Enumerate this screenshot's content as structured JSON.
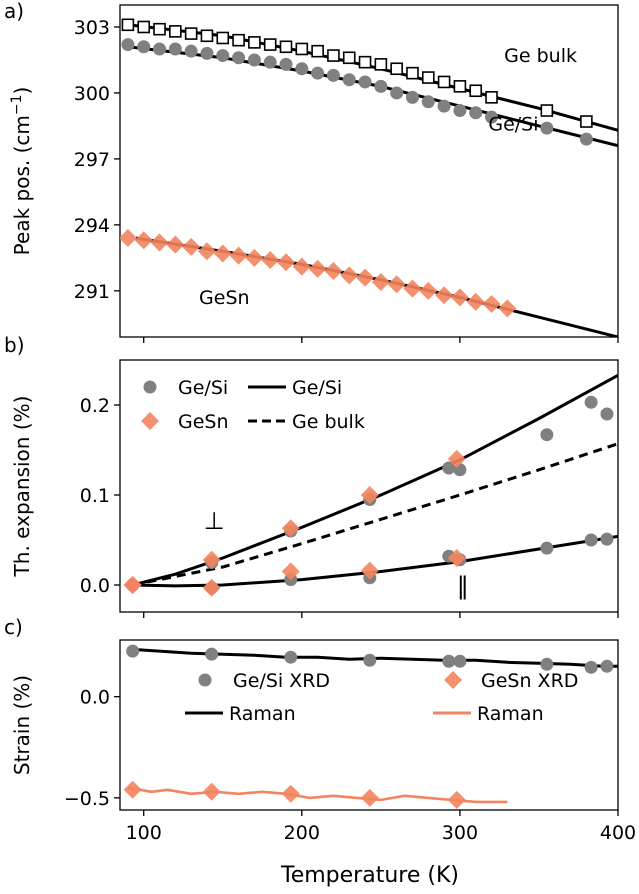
{
  "figure": {
    "x_label": "Temperature (K)",
    "x_ticks": [
      100,
      200,
      300,
      400
    ]
  },
  "chart_data": [
    {
      "panel_label": "a)",
      "type": "scatter",
      "ylabel": "Peak pos. (cm$^{-1}$)",
      "ylabel_main": "Peak pos. (cm",
      "ylabel_sup": "−1",
      "ylabel_close": ")",
      "xlim": [
        85,
        400
      ],
      "ylim": [
        288.9,
        304.0
      ],
      "yticks": [
        291,
        294,
        297,
        300,
        303
      ],
      "yticklabels": [
        "291",
        "294",
        "297",
        "300",
        "303"
      ],
      "annotations": [
        {
          "text": "Ge bulk",
          "x": 328,
          "y": 301.4
        },
        {
          "text": "Ge/Si",
          "x": 318,
          "y": 298.3
        },
        {
          "text": "GeSn",
          "x": 135,
          "y": 290.4
        }
      ],
      "series": [
        {
          "name": "Ge bulk",
          "kind": "points",
          "marker": "square",
          "color": "#000000",
          "x": [
            90,
            100,
            110,
            120,
            130,
            140,
            150,
            160,
            170,
            180,
            190,
            200,
            210,
            220,
            230,
            240,
            250,
            260,
            270,
            280,
            290,
            300,
            310,
            320,
            355,
            380
          ],
          "y": [
            303.1,
            303.0,
            302.9,
            302.8,
            302.7,
            302.6,
            302.5,
            302.4,
            302.3,
            302.2,
            302.1,
            302.0,
            301.9,
            301.7,
            301.6,
            301.4,
            301.3,
            301.1,
            300.9,
            300.7,
            300.5,
            300.3,
            300.1,
            299.8,
            299.2,
            298.7
          ]
        },
        {
          "name": "Ge bulk fit",
          "kind": "line",
          "color": "#000000",
          "x": [
            90,
            150,
            200,
            250,
            300,
            350,
            400
          ],
          "y": [
            303.1,
            302.6,
            301.9,
            301.1,
            300.2,
            299.3,
            298.3
          ]
        },
        {
          "name": "Ge/Si",
          "kind": "points",
          "marker": "circle",
          "color": "#808080",
          "x": [
            90,
            100,
            110,
            120,
            130,
            140,
            150,
            160,
            170,
            180,
            190,
            200,
            210,
            220,
            230,
            240,
            250,
            260,
            270,
            280,
            290,
            300,
            310,
            320,
            355,
            380
          ],
          "y": [
            302.2,
            302.1,
            302.0,
            302.0,
            301.9,
            301.8,
            301.7,
            301.6,
            301.5,
            301.4,
            301.3,
            301.1,
            300.9,
            300.8,
            300.6,
            300.5,
            300.3,
            300.0,
            299.8,
            299.6,
            299.4,
            299.2,
            299.1,
            298.9,
            298.4,
            297.9
          ]
        },
        {
          "name": "Ge/Si fit",
          "kind": "line",
          "color": "#000000",
          "x": [
            90,
            150,
            200,
            250,
            300,
            350,
            400
          ],
          "y": [
            302.1,
            301.6,
            301.0,
            300.3,
            299.4,
            298.5,
            297.6
          ]
        },
        {
          "name": "GeSn",
          "kind": "points",
          "marker": "diamond",
          "color": "#f4845f",
          "x": [
            90,
            100,
            110,
            120,
            130,
            140,
            150,
            160,
            170,
            180,
            190,
            200,
            210,
            220,
            230,
            240,
            250,
            260,
            270,
            280,
            290,
            300,
            310,
            320,
            330
          ],
          "y": [
            293.4,
            293.3,
            293.2,
            293.1,
            293.0,
            292.8,
            292.7,
            292.6,
            292.5,
            292.4,
            292.3,
            292.1,
            292.0,
            291.9,
            291.7,
            291.6,
            291.4,
            291.3,
            291.1,
            291.0,
            290.8,
            290.7,
            290.5,
            290.4,
            290.2
          ]
        },
        {
          "name": "GeSn fit",
          "kind": "line",
          "color": "#000000",
          "x": [
            95,
            150,
            200,
            250,
            300,
            350,
            400
          ],
          "y": [
            293.4,
            292.8,
            292.2,
            291.5,
            290.7,
            289.8,
            288.9
          ]
        }
      ]
    },
    {
      "panel_label": "b)",
      "type": "scatter",
      "ylabel": "Th. expansion (%)",
      "xlim": [
        85,
        400
      ],
      "ylim": [
        -0.03,
        0.25
      ],
      "yticks": [
        0.0,
        0.1,
        0.2
      ],
      "yticklabels": [
        "0.0",
        "0.1",
        "0.2"
      ],
      "legend_position": "top-left",
      "legend": [
        {
          "label": "Ge/Si",
          "symbol": "circle",
          "color": "#808080"
        },
        {
          "label": "GeSn",
          "symbol": "diamond",
          "color": "#f4845f"
        },
        {
          "label": "Ge/Si",
          "symbol": "solid-line",
          "color": "#000000"
        },
        {
          "label": "Ge bulk",
          "symbol": "dashed-line",
          "color": "#000000"
        }
      ],
      "annotations": [
        {
          "text": "⊥",
          "x": 138,
          "y": 0.062
        },
        {
          "text": "‖",
          "x": 298,
          "y": -0.01
        }
      ],
      "series": [
        {
          "name": "Ge/Si",
          "kind": "points",
          "marker": "circle",
          "color": "#808080",
          "x": [
            93,
            143,
            193,
            243,
            293,
            300,
            355,
            383,
            393
          ],
          "y": [
            0.0,
            0.025,
            0.06,
            0.095,
            0.13,
            0.128,
            0.167,
            0.203,
            0.19
          ]
        },
        {
          "name": "Ge/Si",
          "kind": "points",
          "marker": "circle",
          "color": "#808080",
          "x": [
            93,
            143,
            193,
            243,
            293,
            300,
            355,
            383,
            393
          ],
          "y": [
            0.0,
            -0.003,
            0.006,
            0.008,
            0.032,
            0.028,
            0.041,
            0.05,
            0.051
          ]
        },
        {
          "name": "GeSn",
          "kind": "points",
          "marker": "diamond",
          "color": "#f4845f",
          "x": [
            93,
            143,
            193,
            243,
            298
          ],
          "y": [
            0.0,
            0.028,
            0.063,
            0.1,
            0.14
          ]
        },
        {
          "name": "GeSn",
          "kind": "points",
          "marker": "diamond",
          "color": "#f4845f",
          "x": [
            93,
            143,
            193,
            243,
            298
          ],
          "y": [
            0.0,
            -0.003,
            0.015,
            0.016,
            0.03
          ]
        },
        {
          "name": "Ge/Si",
          "kind": "line",
          "color": "#000000",
          "x": [
            93,
            120,
            150,
            200,
            250,
            300,
            350,
            400
          ],
          "y": [
            0.0,
            0.012,
            0.03,
            0.064,
            0.1,
            0.139,
            0.185,
            0.233
          ]
        },
        {
          "name": "Ge/Si",
          "kind": "line",
          "color": "#000000",
          "x": [
            93,
            120,
            150,
            200,
            250,
            300,
            350,
            400
          ],
          "y": [
            0.0,
            -0.001,
            0.0,
            0.006,
            0.015,
            0.026,
            0.04,
            0.054
          ]
        },
        {
          "name": "Ge bulk",
          "kind": "line",
          "dash": true,
          "color": "#000000",
          "x": [
            93,
            150,
            200,
            250,
            300,
            350,
            400
          ],
          "y": [
            0.0,
            0.02,
            0.046,
            0.073,
            0.1,
            0.128,
            0.157
          ]
        }
      ]
    },
    {
      "panel_label": "c)",
      "type": "scatter",
      "ylabel": "Strain (%)",
      "xlim": [
        85,
        400
      ],
      "ylim": [
        -0.56,
        0.28
      ],
      "yticks": [
        -0.5,
        0.0
      ],
      "yticklabels": [
        "−0.5",
        "0.0"
      ],
      "legend": [
        {
          "label": "Ge/Si XRD",
          "symbol": "circle",
          "color": "#808080"
        },
        {
          "label": "GeSn XRD",
          "symbol": "diamond",
          "color": "#f4845f"
        },
        {
          "label": "Raman",
          "symbol": "solid-line",
          "color": "#000000"
        },
        {
          "label": "Raman",
          "symbol": "solid-line",
          "color": "#f4845f"
        }
      ],
      "series": [
        {
          "name": "Ge/Si XRD",
          "kind": "points",
          "marker": "circle",
          "color": "#808080",
          "x": [
            93,
            143,
            193,
            243,
            293,
            300,
            355,
            383,
            393
          ],
          "y": [
            0.225,
            0.21,
            0.195,
            0.18,
            0.175,
            0.175,
            0.16,
            0.145,
            0.15
          ]
        },
        {
          "name": "Raman",
          "kind": "line",
          "color": "#000000",
          "x": [
            90,
            110,
            130,
            150,
            170,
            190,
            210,
            230,
            250,
            270,
            290,
            310,
            330,
            350,
            370,
            390,
            400
          ],
          "y": [
            0.235,
            0.225,
            0.215,
            0.21,
            0.205,
            0.195,
            0.195,
            0.185,
            0.19,
            0.185,
            0.18,
            0.18,
            0.17,
            0.165,
            0.16,
            0.15,
            0.15
          ]
        },
        {
          "name": "GeSn XRD",
          "kind": "points",
          "marker": "diamond",
          "color": "#f4845f",
          "x": [
            93,
            143,
            193,
            243,
            298
          ],
          "y": [
            -0.46,
            -0.47,
            -0.48,
            -0.5,
            -0.51
          ]
        },
        {
          "name": "Raman",
          "kind": "line",
          "color": "#f4845f",
          "x": [
            90,
            105,
            115,
            130,
            145,
            160,
            175,
            190,
            205,
            220,
            235,
            250,
            265,
            280,
            295,
            310,
            330
          ],
          "y": [
            -0.45,
            -0.47,
            -0.46,
            -0.48,
            -0.47,
            -0.48,
            -0.47,
            -0.48,
            -0.5,
            -0.49,
            -0.5,
            -0.51,
            -0.49,
            -0.5,
            -0.51,
            -0.52,
            -0.52
          ]
        }
      ]
    }
  ]
}
